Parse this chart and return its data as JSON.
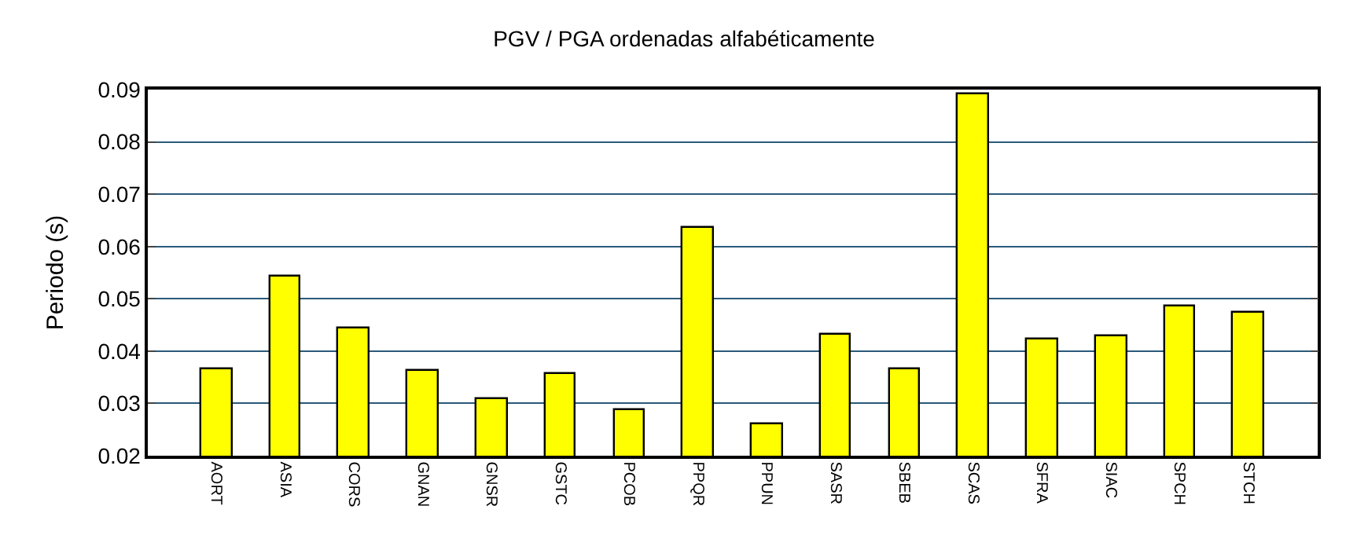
{
  "chart_data": {
    "type": "bar",
    "title": "PGV / PGA ordenadas alfabéticamente",
    "ylabel": "Periodo (s)",
    "categories": [
      "AORT",
      "ASIA",
      "CORS",
      "GNAN",
      "GNSR",
      "GSTC",
      "PCOB",
      "PPQR",
      "PPUN",
      "SASR",
      "SBEB",
      "SCAS",
      "SFRA",
      "SIAC",
      "SPCH",
      "STCH"
    ],
    "values": [
      0.0365,
      0.0542,
      0.0443,
      0.0362,
      0.0308,
      0.0356,
      0.0287,
      0.0635,
      0.026,
      0.0431,
      0.0365,
      0.089,
      0.0422,
      0.0428,
      0.0485,
      0.0473
    ],
    "color": "#ffff00",
    "ylim": [
      0.02,
      0.09
    ],
    "yticks": [
      0.02,
      0.03,
      0.04,
      0.05,
      0.06,
      0.07,
      0.08,
      0.09
    ],
    "grid": "y"
  }
}
